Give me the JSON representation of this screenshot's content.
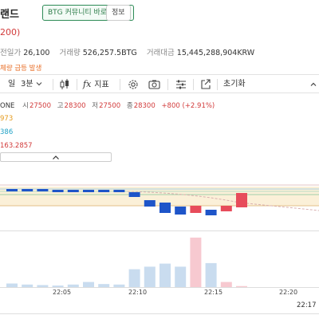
{
  "header": {
    "title_fragment": "랜드",
    "community_button": "BTG 커뮤니티 바로가기 >",
    "info_button": "정보",
    "price_fragment": "200)",
    "stats": [
      {
        "label": "전일가",
        "value": "26,100"
      },
      {
        "label": "거래량",
        "value": "526,257.5BTG"
      },
      {
        "label": "거래대금",
        "value": "15,445,288,904KRW"
      }
    ],
    "alert": "체량 급등 발생"
  },
  "toolbar": {
    "period_label": "일",
    "interval_label": "3분",
    "indicator_label": "지표",
    "reset_label": "초기화",
    "icons": [
      "candle-type-icon",
      "fx-icon",
      "settings-icon",
      "camera-icon",
      "sliders-icon",
      "share-icon"
    ]
  },
  "legend": {
    "symbol_fragment": "ONE",
    "open_label": "시",
    "open": "27500",
    "high_label": "고",
    "high": "28300",
    "low_label": "저",
    "low": "27500",
    "close_label": "종",
    "close": "28300",
    "change": "+800 (+2.91%)",
    "ma1_fragment": "973",
    "ma2_fragment": "386",
    "ma3_fragment": "163.2857"
  },
  "colors": {
    "up": "#e74c5b",
    "down": "#1e55c9",
    "up_volume": "#f7c9d0",
    "down_volume": "#c9dcef",
    "accent_green": "#2e8b57"
  },
  "chart_data": {
    "type": "candlestick",
    "x_ticks": [
      "22:05",
      "22:10",
      "22:15",
      "22:20"
    ],
    "candles": [
      {
        "dir": "down"
      },
      {
        "dir": "down"
      },
      {
        "dir": "down"
      },
      {
        "dir": "down"
      },
      {
        "dir": "down"
      },
      {
        "dir": "down"
      },
      {
        "dir": "down"
      },
      {
        "dir": "down"
      },
      {
        "dir": "down"
      },
      {
        "dir": "down"
      },
      {
        "dir": "down"
      },
      {
        "dir": "down"
      },
      {
        "dir": "up"
      },
      {
        "dir": "down"
      },
      {
        "dir": "up"
      },
      {
        "dir": "up"
      }
    ],
    "volume_relative": [
      0.07,
      0.05,
      0.04,
      0.03,
      0.05,
      0.1,
      0.06,
      0.05,
      0.35,
      0.4,
      0.46,
      0.4,
      0.97,
      0.47,
      0.1,
      0.02
    ]
  },
  "footer": {
    "current_time_fragment": "22:17"
  }
}
